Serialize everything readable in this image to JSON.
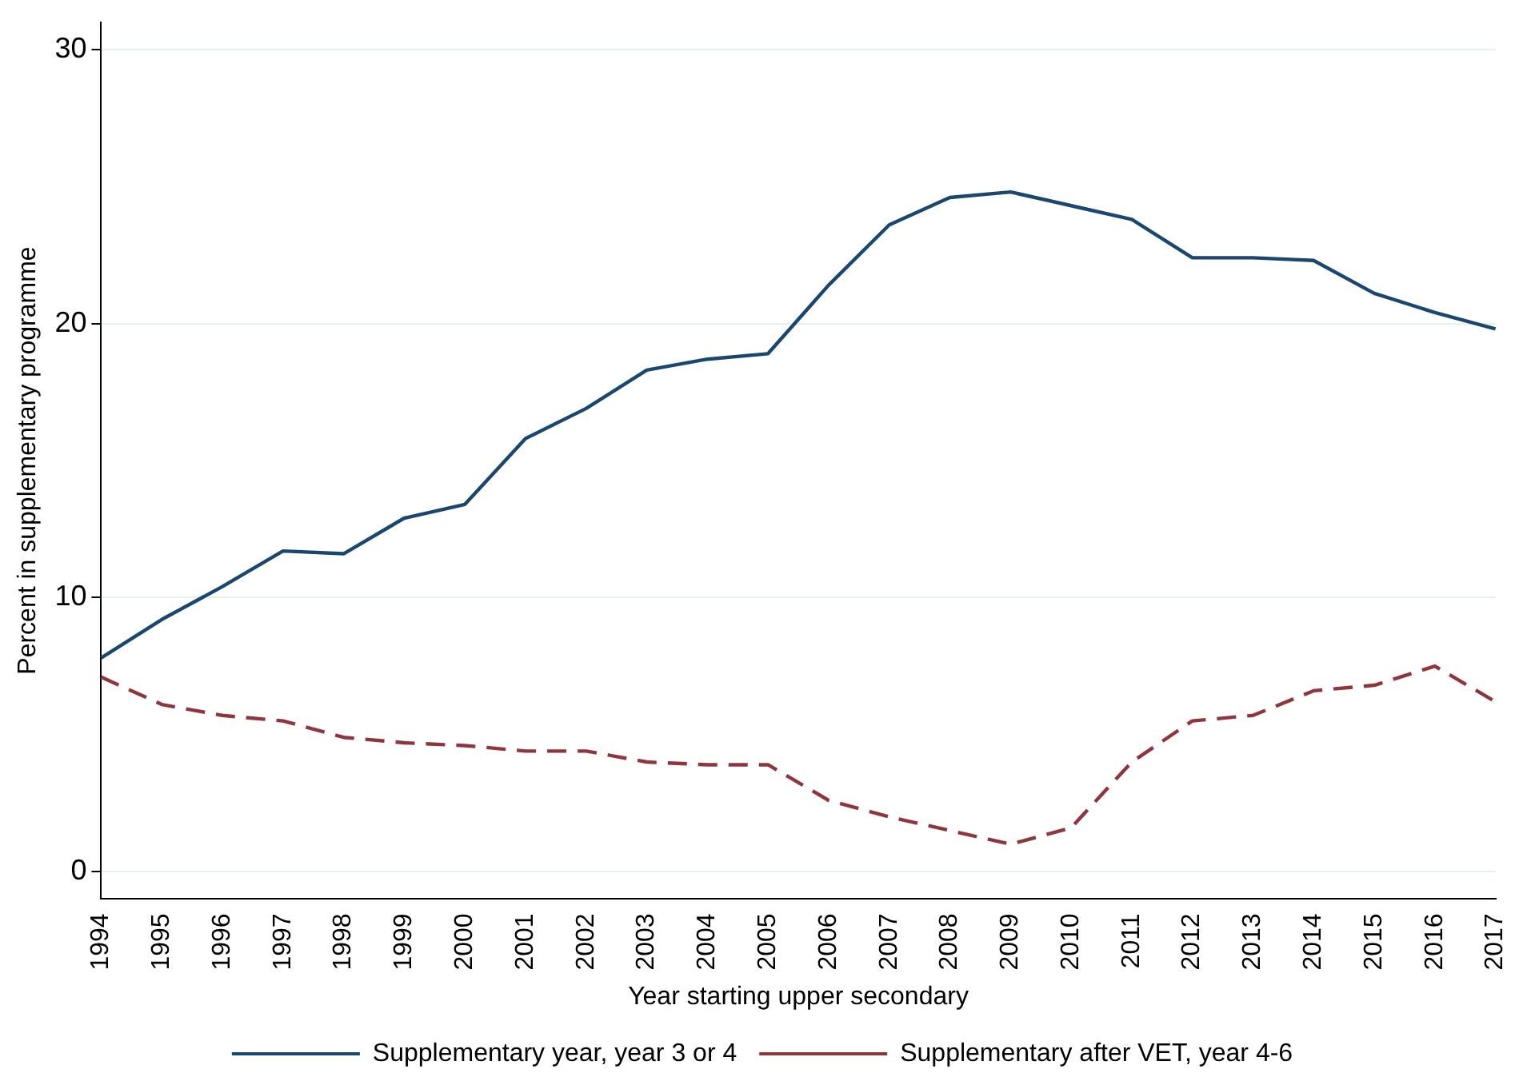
{
  "chart_data": {
    "type": "line",
    "xlabel": "Year starting upper secondary",
    "ylabel": "Percent in supplementary programme",
    "categories": [
      "1994",
      "1995",
      "1996",
      "1997",
      "1998",
      "1999",
      "2000",
      "2001",
      "2002",
      "2003",
      "2004",
      "2005",
      "2006",
      "2007",
      "2008",
      "2009",
      "2010",
      "2011",
      "2012",
      "2013",
      "2014",
      "2015",
      "2016",
      "2017"
    ],
    "series": [
      {
        "name": "Supplementary year, year 3 or 4",
        "color": "#1a476f",
        "line_style": "solid",
        "values": [
          7.8,
          9.2,
          10.4,
          11.7,
          11.6,
          12.9,
          13.4,
          15.8,
          16.9,
          18.3,
          18.7,
          18.9,
          21.4,
          23.6,
          24.6,
          24.8,
          24.3,
          23.8,
          22.4,
          22.4,
          22.3,
          21.1,
          20.4,
          19.8
        ]
      },
      {
        "name": "Supplementary after VET, year 4-6",
        "color": "#90353b",
        "line_style": "dashed",
        "values": [
          7.1,
          6.1,
          5.7,
          5.5,
          4.9,
          4.7,
          4.6,
          4.4,
          4.4,
          4.0,
          3.9,
          3.9,
          2.6,
          2.0,
          1.5,
          1.0,
          1.6,
          4.0,
          5.5,
          5.7,
          6.6,
          6.8,
          7.5,
          6.2
        ]
      }
    ],
    "ylim": [
      -1,
      31
    ],
    "yticks": [
      0,
      10,
      20,
      30
    ],
    "grid": "y",
    "legend": "bottom",
    "marker": "none"
  }
}
